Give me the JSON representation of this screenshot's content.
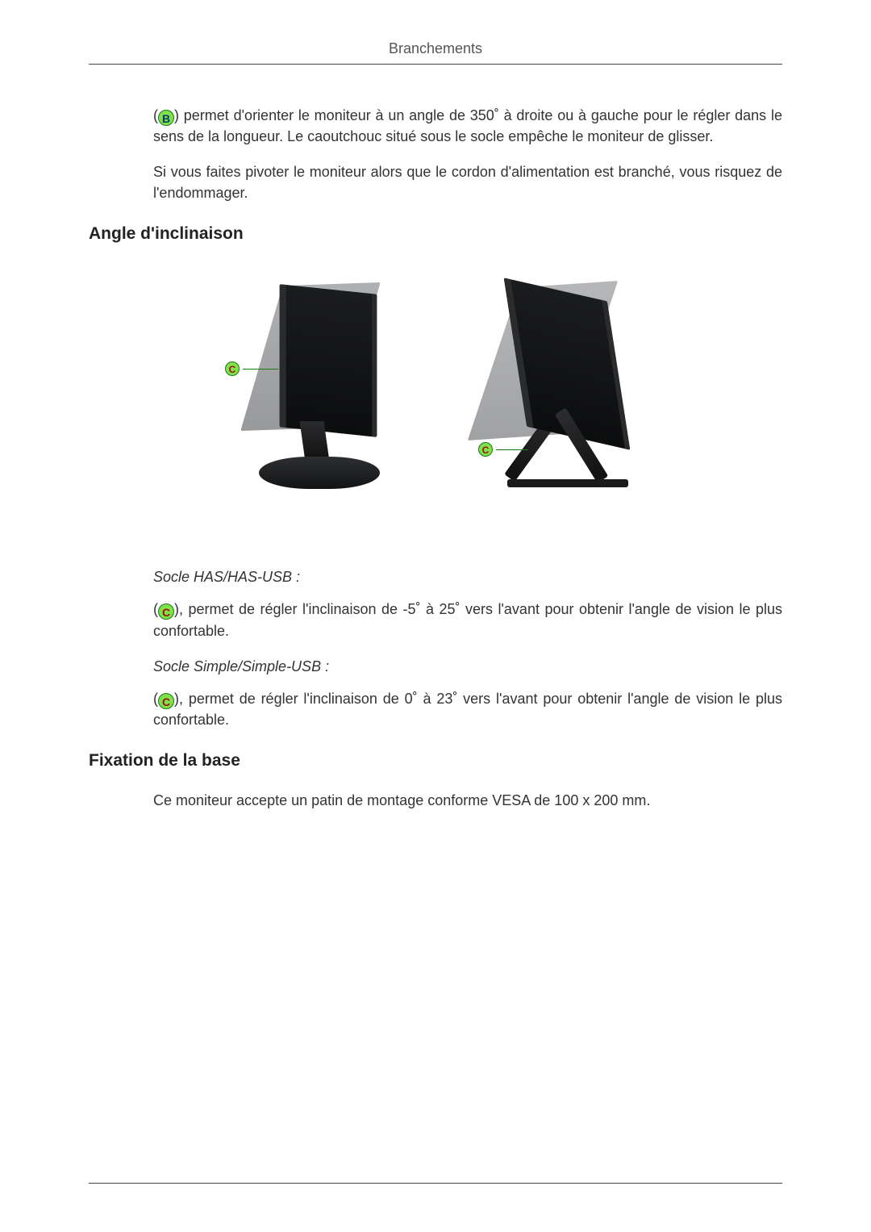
{
  "header": {
    "title": "Branchements"
  },
  "badges": {
    "b_letter": "B",
    "c_letter": "C",
    "border_color": "#1a7a1a",
    "fill_color": "#7fe04a",
    "b_text_color": "#0a3a6a",
    "c_text_color": "#a01010"
  },
  "intro": {
    "p1_after_badge": ") permet d'orienter le moniteur à un angle de 350˚ à droite ou à gauche pour le régler dans le sens de la longueur. Le caoutchouc situé sous le socle empêche le moniteur de glisser.",
    "p2": "Si vous faites pivoter le moniteur alors que le cordon d'alimentation est branché, vous risquez de l'endommager."
  },
  "section_tilt": {
    "heading": "Angle d'inclinaison",
    "has_label": "Socle HAS/HAS-USB :",
    "has_text_after_badge": "), permet de régler l'inclinaison de -5˚ à 25˚ vers l'avant pour obtenir l'angle de vision le plus confortable.",
    "simple_label": "Socle Simple/Simple-USB :",
    "simple_text_after_badge": "), permet de régler l'inclinaison de 0˚ à 23˚ vers l'avant pour obtenir l'angle de vision le plus confortable."
  },
  "section_base": {
    "heading": "Fixation de la base",
    "p1": "Ce moniteur accepte un patin de montage conforme VESA de 100 x 200 mm."
  },
  "figure": {
    "monitor_color": "#1b1c1e",
    "ghost_color": "#7a7c80",
    "base_color": "#2e2f31",
    "callout_line_color": "#1a7a1a"
  }
}
